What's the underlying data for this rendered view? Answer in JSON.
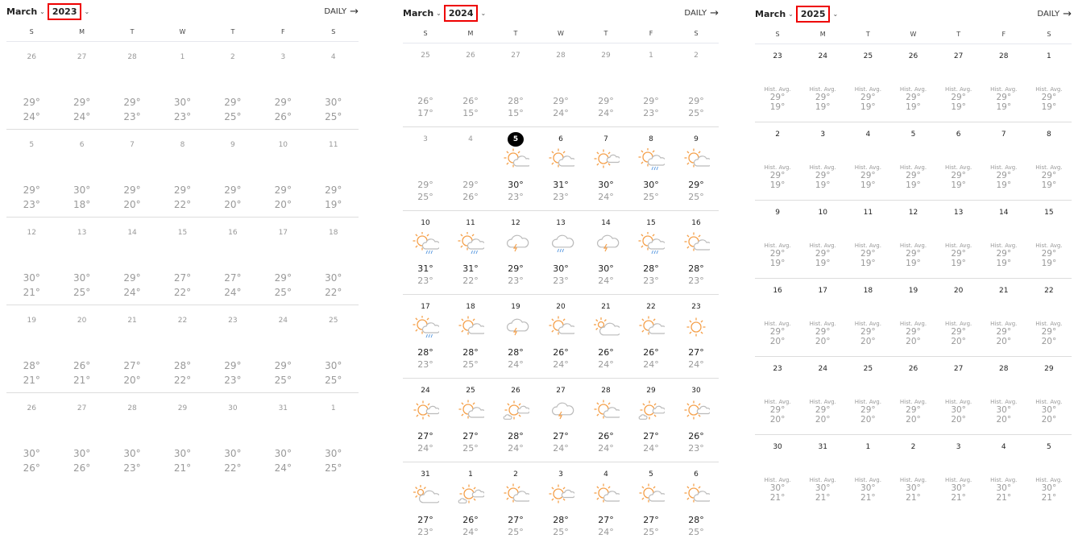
{
  "colors": {
    "highlight_border": "#e00000",
    "sun": "#f5a04a",
    "cloud": "#bbbbbb",
    "rain": "#5a9ae0",
    "today_bg": "#000000"
  },
  "calendars": [
    {
      "month": "March",
      "year": "2023",
      "daily_label": "DAILY",
      "weekdays": [
        "S",
        "M",
        "T",
        "W",
        "T",
        "F",
        "S"
      ],
      "weeks": [
        {
          "days": [
            "26",
            "27",
            "28",
            "1",
            "2",
            "3",
            "4"
          ],
          "hi": [
            "29°",
            "29°",
            "29°",
            "30°",
            "29°",
            "29°",
            "30°"
          ],
          "lo": [
            "24°",
            "24°",
            "23°",
            "23°",
            "25°",
            "26°",
            "25°"
          ]
        },
        {
          "days": [
            "5",
            "6",
            "7",
            "8",
            "9",
            "10",
            "11"
          ],
          "hi": [
            "29°",
            "30°",
            "29°",
            "29°",
            "29°",
            "29°",
            "29°"
          ],
          "lo": [
            "23°",
            "18°",
            "20°",
            "22°",
            "20°",
            "20°",
            "19°"
          ]
        },
        {
          "days": [
            "12",
            "13",
            "14",
            "15",
            "16",
            "17",
            "18"
          ],
          "hi": [
            "30°",
            "30°",
            "29°",
            "27°",
            "27°",
            "29°",
            "30°"
          ],
          "lo": [
            "21°",
            "25°",
            "24°",
            "22°",
            "24°",
            "25°",
            "22°"
          ]
        },
        {
          "days": [
            "19",
            "20",
            "21",
            "22",
            "23",
            "24",
            "25"
          ],
          "hi": [
            "28°",
            "26°",
            "27°",
            "28°",
            "29°",
            "29°",
            "30°"
          ],
          "lo": [
            "21°",
            "21°",
            "20°",
            "22°",
            "23°",
            "25°",
            "25°"
          ]
        },
        {
          "days": [
            "26",
            "27",
            "28",
            "29",
            "30",
            "31",
            "1"
          ],
          "hi": [
            "30°",
            "30°",
            "30°",
            "30°",
            "30°",
            "30°",
            "30°"
          ],
          "lo": [
            "26°",
            "26°",
            "23°",
            "21°",
            "22°",
            "24°",
            "25°"
          ]
        }
      ]
    },
    {
      "month": "March",
      "year": "2024",
      "daily_label": "DAILY",
      "today": "5",
      "weekdays": [
        "S",
        "M",
        "T",
        "W",
        "T",
        "F",
        "S"
      ],
      "weeks": [
        {
          "days": [
            "25",
            "26",
            "27",
            "28",
            "29",
            "1",
            "2"
          ],
          "hi": [
            "26°",
            "26°",
            "28°",
            "29°",
            "29°",
            "29°",
            "29°"
          ],
          "lo": [
            "17°",
            "15°",
            "15°",
            "24°",
            "24°",
            "23°",
            "25°"
          ],
          "icons": [
            "",
            "",
            "",
            "",
            "",
            "",
            ""
          ]
        },
        {
          "days": [
            "3",
            "4",
            "5",
            "6",
            "7",
            "8",
            "9"
          ],
          "hi": [
            "29°",
            "29°",
            "30°",
            "31°",
            "30°",
            "30°",
            "29°"
          ],
          "lo": [
            "25°",
            "26°",
            "23°",
            "23°",
            "24°",
            "25°",
            "25°"
          ],
          "icons": [
            "",
            "",
            "partly-sunny",
            "partly-sunny",
            "sunny-small-cloud",
            "sun-cloud-rain",
            "partly-sunny"
          ]
        },
        {
          "days": [
            "10",
            "11",
            "12",
            "13",
            "14",
            "15",
            "16"
          ],
          "hi": [
            "31°",
            "31°",
            "29°",
            "30°",
            "30°",
            "28°",
            "28°"
          ],
          "lo": [
            "23°",
            "22°",
            "23°",
            "23°",
            "24°",
            "23°",
            "23°"
          ],
          "icons": [
            "sun-cloud-rain",
            "sun-cloud-rain",
            "thunderstorm",
            "rain",
            "thunderstorm",
            "sun-cloud-rain",
            "partly-sunny"
          ]
        },
        {
          "days": [
            "17",
            "18",
            "19",
            "20",
            "21",
            "22",
            "23"
          ],
          "hi": [
            "28°",
            "28°",
            "28°",
            "26°",
            "26°",
            "26°",
            "27°"
          ],
          "lo": [
            "23°",
            "25°",
            "24°",
            "24°",
            "24°",
            "24°",
            "24°"
          ],
          "icons": [
            "sun-cloud-rain",
            "partly-sunny",
            "thunderstorm",
            "partly-sunny",
            "mostly-cloudy",
            "partly-sunny",
            "sunny"
          ]
        },
        {
          "days": [
            "24",
            "25",
            "26",
            "27",
            "28",
            "29",
            "30"
          ],
          "hi": [
            "27°",
            "27°",
            "28°",
            "27°",
            "26°",
            "27°",
            "26°"
          ],
          "lo": [
            "24°",
            "25°",
            "24°",
            "24°",
            "24°",
            "24°",
            "23°"
          ],
          "icons": [
            "sunny-small-cloud",
            "partly-sunny",
            "sun-two-clouds",
            "thunderstorm",
            "partly-sunny",
            "sun-two-clouds",
            "sunny-small-cloud"
          ]
        },
        {
          "days": [
            "31",
            "1",
            "2",
            "3",
            "4",
            "5",
            "6"
          ],
          "hi": [
            "27°",
            "26°",
            "27°",
            "28°",
            "27°",
            "27°",
            "28°"
          ],
          "lo": [
            "23°",
            "24°",
            "25°",
            "25°",
            "24°",
            "25°",
            "25°"
          ],
          "icons": [
            "mostly-cloudy",
            "sun-two-clouds",
            "partly-sunny",
            "sunny-small-cloud",
            "partly-sunny",
            "partly-sunny",
            "partly-sunny"
          ]
        }
      ]
    },
    {
      "month": "March",
      "year": "2025",
      "daily_label": "DAILY",
      "hist_label": "Hist. Avg.",
      "weekdays": [
        "S",
        "M",
        "T",
        "W",
        "T",
        "F",
        "S"
      ],
      "weeks": [
        {
          "days": [
            "23",
            "24",
            "25",
            "26",
            "27",
            "28",
            "1"
          ],
          "hi": [
            "29°",
            "29°",
            "29°",
            "29°",
            "29°",
            "29°",
            "29°"
          ],
          "lo": [
            "19°",
            "19°",
            "19°",
            "19°",
            "19°",
            "19°",
            "19°"
          ]
        },
        {
          "days": [
            "2",
            "3",
            "4",
            "5",
            "6",
            "7",
            "8"
          ],
          "hi": [
            "29°",
            "29°",
            "29°",
            "29°",
            "29°",
            "29°",
            "29°"
          ],
          "lo": [
            "19°",
            "19°",
            "19°",
            "19°",
            "19°",
            "19°",
            "19°"
          ]
        },
        {
          "days": [
            "9",
            "10",
            "11",
            "12",
            "13",
            "14",
            "15"
          ],
          "hi": [
            "29°",
            "29°",
            "29°",
            "29°",
            "29°",
            "29°",
            "29°"
          ],
          "lo": [
            "19°",
            "19°",
            "19°",
            "19°",
            "19°",
            "19°",
            "19°"
          ]
        },
        {
          "days": [
            "16",
            "17",
            "18",
            "19",
            "20",
            "21",
            "22"
          ],
          "hi": [
            "29°",
            "29°",
            "29°",
            "29°",
            "29°",
            "29°",
            "29°"
          ],
          "lo": [
            "20°",
            "20°",
            "20°",
            "20°",
            "20°",
            "20°",
            "20°"
          ]
        },
        {
          "days": [
            "23",
            "24",
            "25",
            "26",
            "27",
            "28",
            "29"
          ],
          "hi": [
            "29°",
            "29°",
            "29°",
            "29°",
            "30°",
            "30°",
            "30°"
          ],
          "lo": [
            "20°",
            "20°",
            "20°",
            "20°",
            "20°",
            "20°",
            "20°"
          ]
        },
        {
          "days": [
            "30",
            "31",
            "1",
            "2",
            "3",
            "4",
            "5"
          ],
          "hi": [
            "30°",
            "30°",
            "30°",
            "30°",
            "30°",
            "30°",
            "30°"
          ],
          "lo": [
            "21°",
            "21°",
            "21°",
            "21°",
            "21°",
            "21°",
            "21°"
          ]
        }
      ]
    }
  ]
}
